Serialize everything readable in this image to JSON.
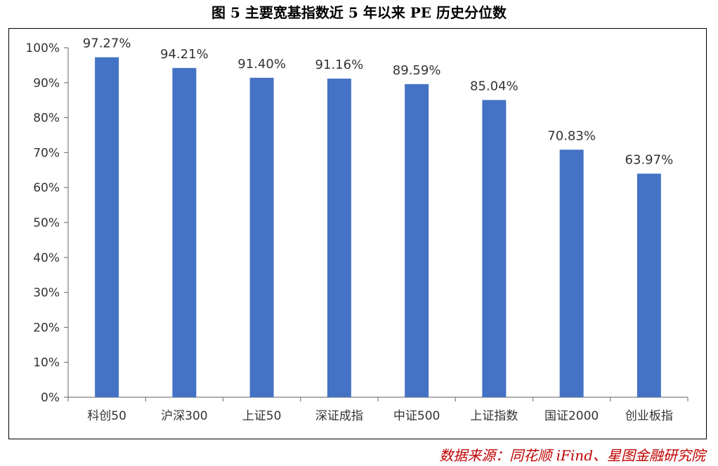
{
  "title": "图 5 主要宽基指数近 5 年以来 PE 历史分位数",
  "source": "数据来源：同花顺 iFind、星图金融研究院",
  "chart_data": {
    "type": "bar",
    "categories": [
      "科创50",
      "沪深300",
      "上证50",
      "深证成指",
      "中证500",
      "上证指数",
      "国证2000",
      "创业板指"
    ],
    "values": [
      97.27,
      94.21,
      91.4,
      91.16,
      89.59,
      85.04,
      70.83,
      63.97
    ],
    "data_labels": [
      "97.27%",
      "94.21%",
      "91.40%",
      "91.16%",
      "89.59%",
      "85.04%",
      "70.83%",
      "63.97%"
    ],
    "yticks": [
      0,
      10,
      20,
      30,
      40,
      50,
      60,
      70,
      80,
      90,
      100
    ],
    "ytick_labels": [
      "0%",
      "10%",
      "20%",
      "30%",
      "40%",
      "50%",
      "60%",
      "70%",
      "80%",
      "90%",
      "100%"
    ],
    "ylim": [
      0,
      100
    ],
    "grid": false,
    "legend": "none",
    "bar_color": "#4472C4",
    "axis_color": "#7f7f7f"
  }
}
